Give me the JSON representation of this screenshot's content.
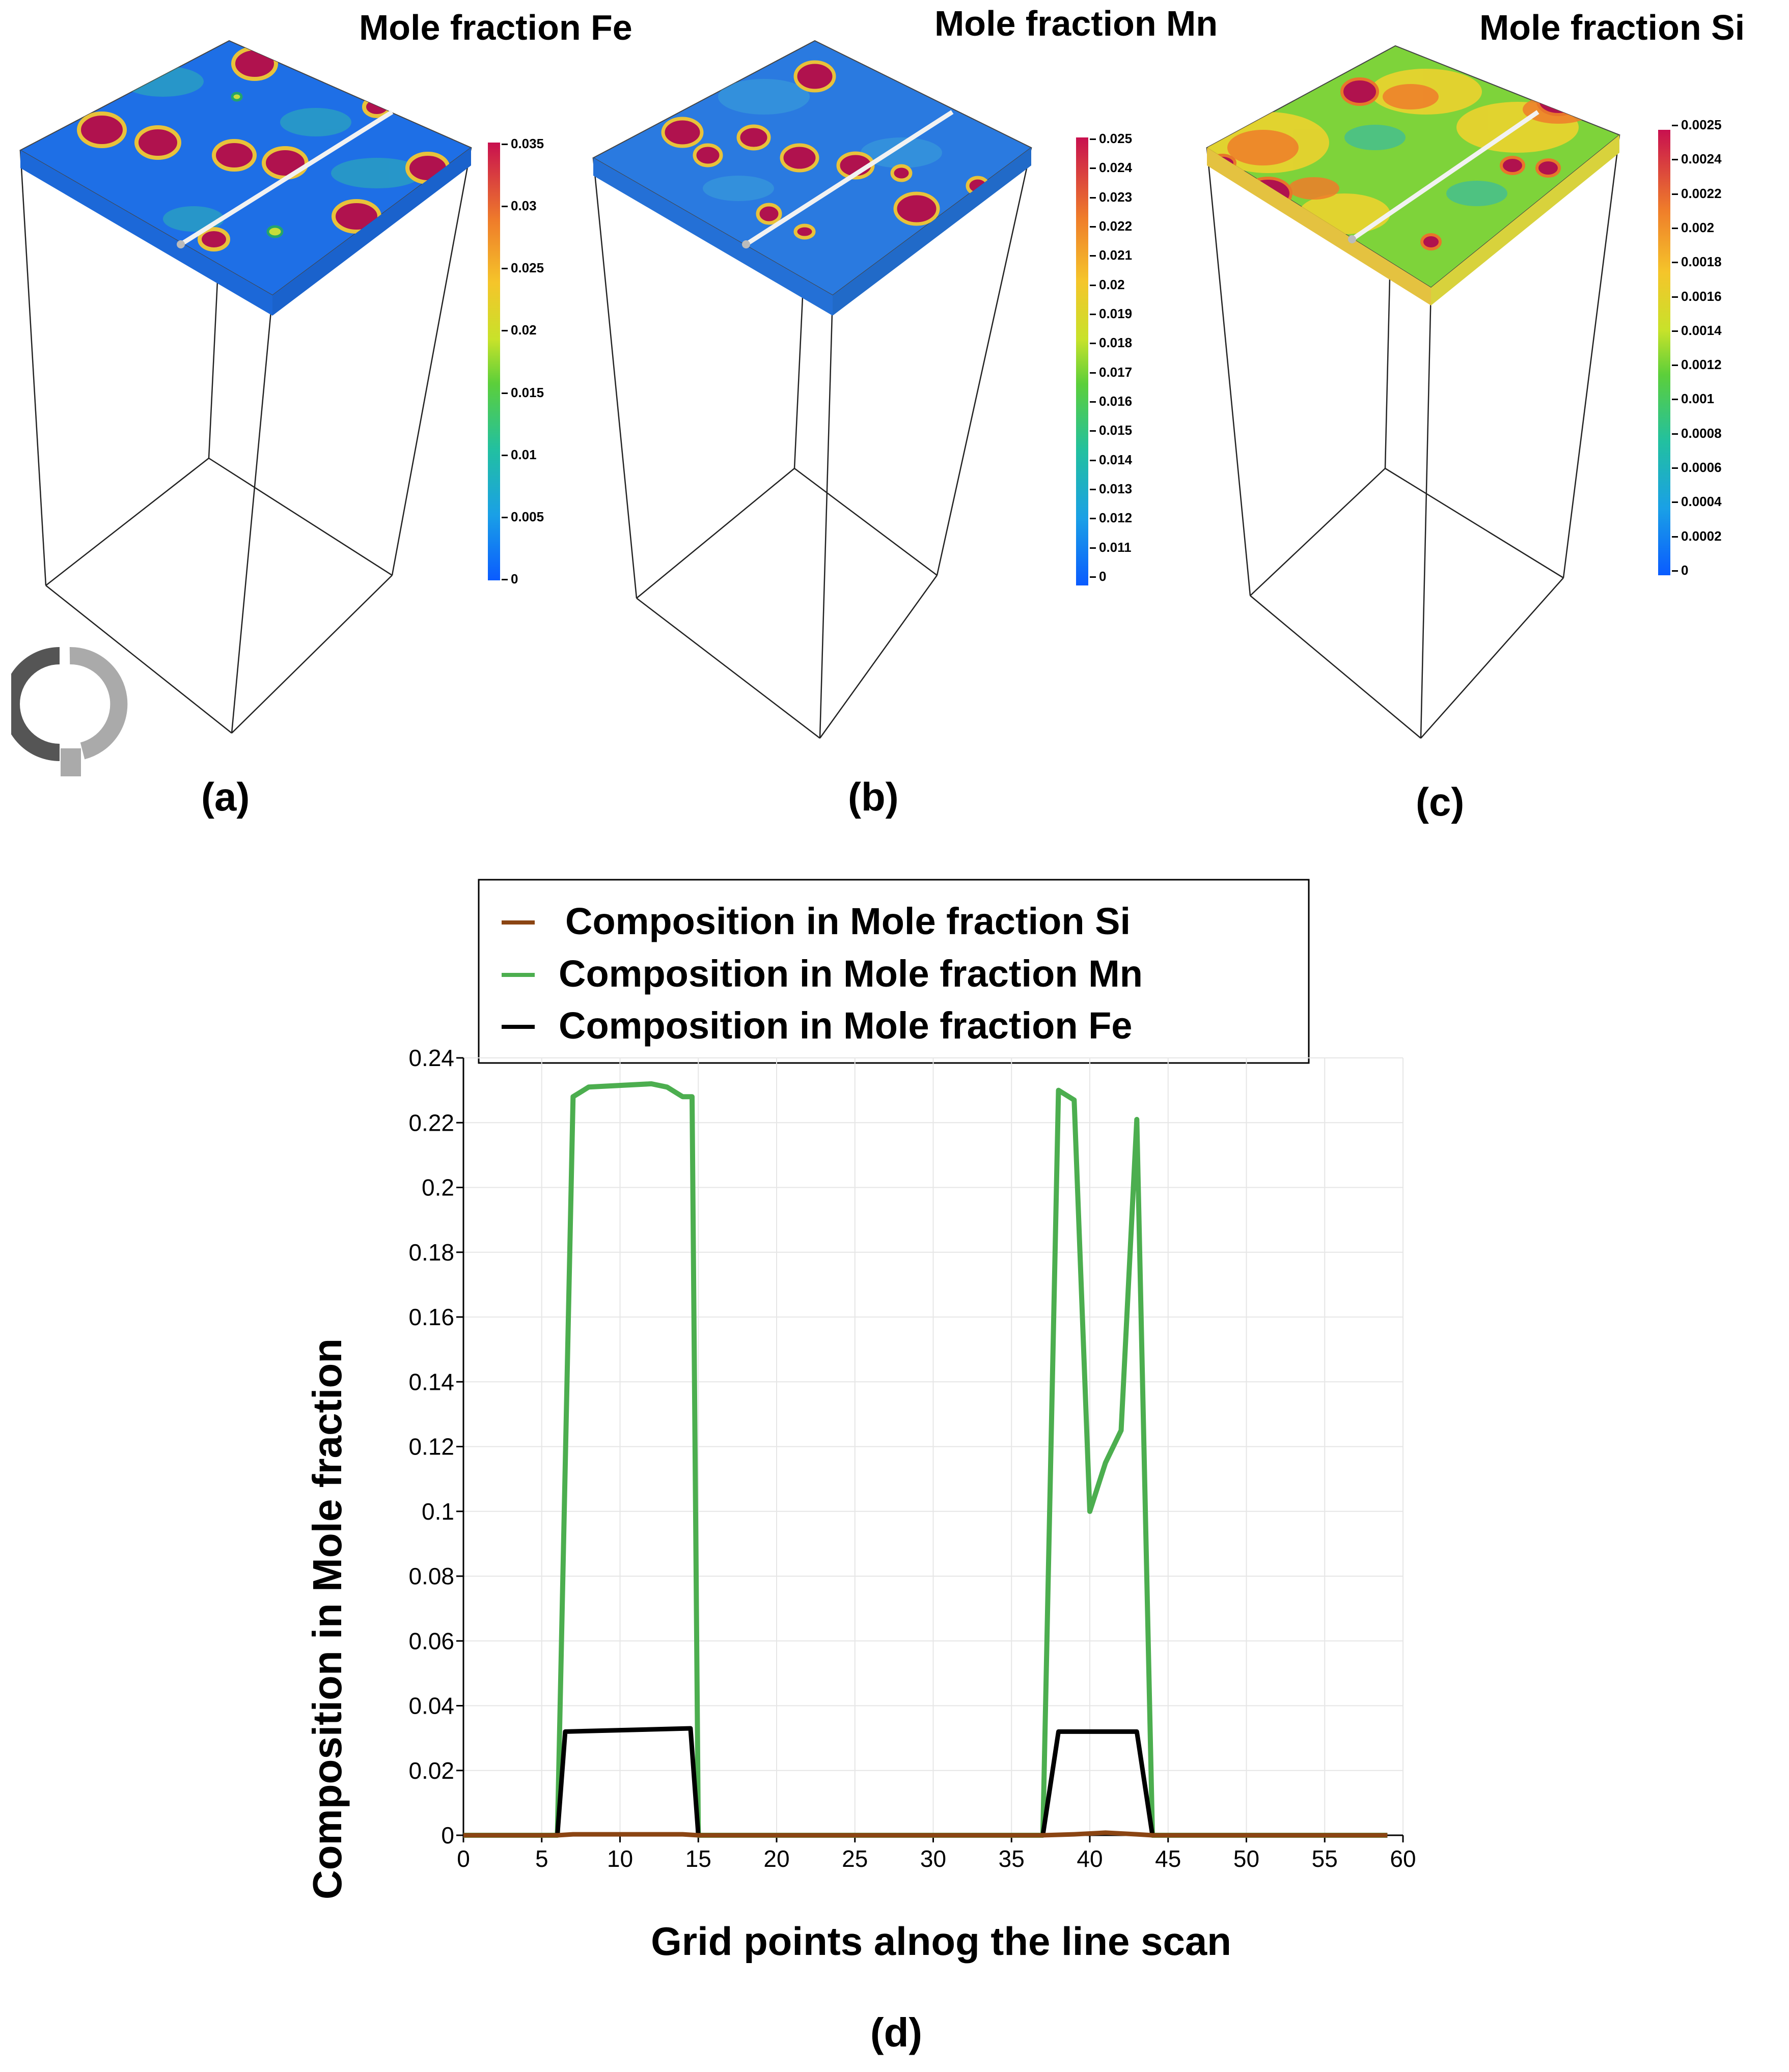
{
  "panels": [
    {
      "id": "a",
      "title": "Mole fraction Fe",
      "label": "(a)",
      "colorbar_ticks": [
        "0.035",
        "0.03",
        "0.025",
        "0.02",
        "0.015",
        "0.01",
        "0.005",
        "0"
      ],
      "colorbar_min": 0,
      "colorbar_max": 0.035
    },
    {
      "id": "b",
      "title": "Mole fraction Mn",
      "label": "(b)",
      "colorbar_ticks": [
        "0.025",
        "0.024",
        "0.023",
        "0.022",
        "0.021",
        "0.02",
        "0.019",
        "0.018",
        "0.017",
        "0.016",
        "0.015",
        "0.014",
        "0.013",
        "0.012",
        "0.011",
        "0"
      ],
      "colorbar_min": 0,
      "colorbar_max": 0.025
    },
    {
      "id": "c",
      "title": "Mole fraction Si",
      "label": "(c)",
      "colorbar_ticks": [
        "0.0025",
        "0.0024",
        "0.0022",
        "0.002",
        "0.0018",
        "0.0016",
        "0.0014",
        "0.0012",
        "0.001",
        "0.0008",
        "0.0006",
        "0.0004",
        "0.0002",
        "0"
      ],
      "colorbar_min": 0,
      "colorbar_max": 0.0025
    }
  ],
  "chart_label": "(d)",
  "colors": {
    "si": "#8b4513",
    "mn": "#4cae4f",
    "fe": "#000000",
    "field_low": "#1565e0",
    "field_high": "#b0124e"
  },
  "chart_data": {
    "type": "line",
    "title": "",
    "xlabel": "Grid points alnog the line scan",
    "ylabel": "Composition in Mole fraction",
    "xlim": [
      0,
      60
    ],
    "ylim": [
      0,
      0.24
    ],
    "xticks": [
      0,
      5,
      10,
      15,
      20,
      25,
      30,
      35,
      40,
      45,
      50,
      55,
      60
    ],
    "yticks": [
      0,
      0.02,
      0.04,
      0.06,
      0.08,
      0.1,
      0.12,
      0.14,
      0.16,
      0.18,
      0.2,
      0.22,
      0.24
    ],
    "ytick_labels": [
      "0",
      "0.02",
      "0.04",
      "0.06",
      "0.08",
      "0.1",
      "0.12",
      "0.14",
      "0.16",
      "0.18",
      "0.2",
      "0.22",
      "0.24"
    ],
    "grid": true,
    "legend_position": "top",
    "series": [
      {
        "key": "si",
        "name": "Composition in Mole fraction Si",
        "points": [
          [
            0,
            0
          ],
          [
            6,
            0
          ],
          [
            7,
            0.0003
          ],
          [
            14,
            0.0003
          ],
          [
            15,
            0
          ],
          [
            37,
            0
          ],
          [
            39,
            0.0003
          ],
          [
            41,
            0.0008
          ],
          [
            43,
            0.0003
          ],
          [
            44,
            0
          ],
          [
            59,
            0
          ]
        ]
      },
      {
        "key": "mn",
        "name": "Composition in Mole fraction Mn",
        "points": [
          [
            0,
            0
          ],
          [
            6,
            0
          ],
          [
            7,
            0.228
          ],
          [
            8,
            0.231
          ],
          [
            12,
            0.232
          ],
          [
            13,
            0.231
          ],
          [
            14,
            0.228
          ],
          [
            14.6,
            0.228
          ],
          [
            15,
            0
          ],
          [
            37,
            0
          ],
          [
            38,
            0.23
          ],
          [
            39,
            0.227
          ],
          [
            40,
            0.1
          ],
          [
            41,
            0.115
          ],
          [
            42,
            0.125
          ],
          [
            43,
            0.221
          ],
          [
            44,
            0
          ],
          [
            59,
            0
          ]
        ]
      },
      {
        "key": "fe",
        "name": "Composition in Mole fraction Fe",
        "points": [
          [
            0,
            0
          ],
          [
            6,
            0
          ],
          [
            6.5,
            0.032
          ],
          [
            14.5,
            0.033
          ],
          [
            15,
            0
          ],
          [
            37,
            0
          ],
          [
            38,
            0.032
          ],
          [
            43,
            0.032
          ],
          [
            44,
            0
          ],
          [
            59,
            0
          ]
        ]
      }
    ]
  }
}
